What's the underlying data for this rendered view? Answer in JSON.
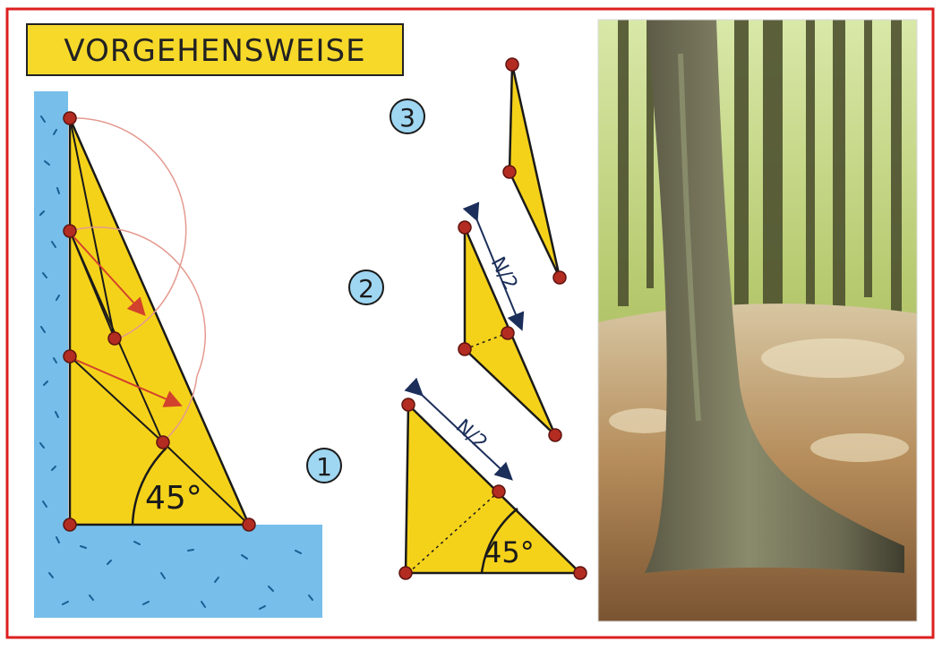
{
  "title": "VORGEHENSWEISE",
  "steps": {
    "one": "1",
    "two": "2",
    "three": "3"
  },
  "labels": {
    "angle_left": "45°",
    "angle_step1": "45°",
    "half_step1": "N/2",
    "half_step2": "N/2"
  },
  "photo": {
    "subject": "forest-tree-trunk"
  },
  "colors": {
    "frame_border": "#dd1f1f",
    "triangle_fill": "#f5d21a",
    "title_fill": "#f7d92a",
    "water": "#5fb3e6",
    "badge": "#9fd6f2",
    "point": "#b32c22",
    "arrow": "#d2422c"
  }
}
